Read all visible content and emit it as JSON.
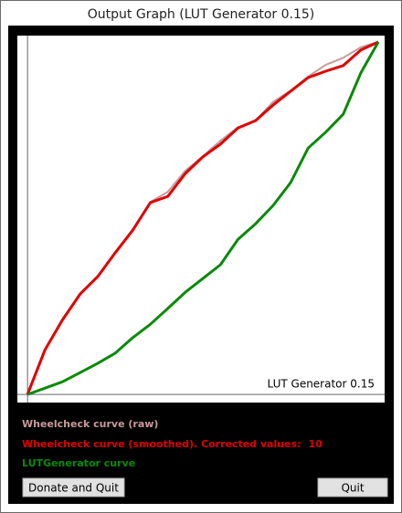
{
  "window": {
    "title": "Output Graph (LUT Generator 0.15)"
  },
  "chart_data": {
    "type": "line",
    "annotation": "LUT Generator 0.15",
    "x": [
      0,
      5,
      10,
      15,
      20,
      25,
      30,
      35,
      40,
      45,
      50,
      55,
      60,
      65,
      70,
      75,
      80,
      85,
      90,
      95,
      100
    ],
    "series": [
      {
        "name": "Wheelcheck curve (raw)",
        "color": "#c99a9a",
        "values": [
          0,
          12.7,
          21.5,
          28.5,
          33.6,
          40.2,
          46.8,
          54.6,
          57.5,
          63.5,
          67.6,
          72.0,
          75.8,
          77.7,
          83.0,
          86.2,
          90.2,
          93.5,
          95.5,
          98.5,
          100
        ]
      },
      {
        "name": "Wheelcheck curve (smoothed). Corrected values:",
        "color": "#e00000",
        "values": [
          0,
          12.7,
          21.2,
          28.5,
          33.4,
          40.2,
          46.6,
          54.4,
          56.2,
          62.7,
          67.4,
          71.0,
          75.6,
          77.7,
          82.1,
          86.0,
          89.9,
          91.7,
          93.3,
          97.7,
          100
        ]
      },
      {
        "name": "LUTGenerator curve",
        "color": "#0a8a0a",
        "values": [
          0,
          1.8,
          3.6,
          6.2,
          8.8,
          11.7,
          16.1,
          19.9,
          24.4,
          29.0,
          32.9,
          36.8,
          44.0,
          48.4,
          53.6,
          60.1,
          69.9,
          74.4,
          79.5,
          91.2,
          100
        ]
      }
    ],
    "corrected_values": 10,
    "xlim": [
      -2.9,
      101.8
    ],
    "ylim": [
      -2.3,
      101.8
    ]
  },
  "buttons": [
    "Donate and Quit",
    "Quit"
  ]
}
